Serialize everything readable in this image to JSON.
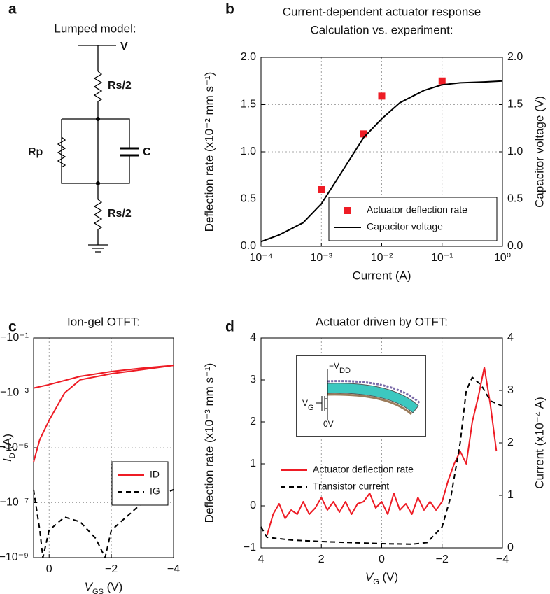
{
  "diagram": {
    "panel": "a",
    "title": "Lumped model:",
    "labels": {
      "v": "V",
      "rs_top": "Rs/2",
      "rp": "Rp",
      "c": "C",
      "rs_bottom": "Rs/2"
    }
  },
  "chart_data": [
    {
      "type": "line",
      "panel": "b",
      "title": "Current-dependent actuator response",
      "subtitle": "Calculation vs. experiment:",
      "x_label": "Current (A)",
      "y_label": "Deflection rate (x10⁻² mm s⁻¹)",
      "y2_label": "Capacitor voltage (V)",
      "xscale": "log",
      "xlim": [
        0.0001,
        1
      ],
      "xticks": [
        {
          "value": 0.0001,
          "label": "10⁻⁴"
        },
        {
          "value": 0.001,
          "label": "10⁻³"
        },
        {
          "value": 0.01,
          "label": "10⁻²"
        },
        {
          "value": 0.1,
          "label": "10⁻¹"
        },
        {
          "value": 1,
          "label": "10⁰"
        }
      ],
      "ylim": [
        0,
        2
      ],
      "yticks": [
        {
          "value": 0,
          "label": "0.0"
        },
        0.5,
        {
          "value": 1,
          "label": "1.0"
        },
        1.5,
        {
          "value": 2,
          "label": "2.0"
        }
      ],
      "y2lim": [
        0,
        2
      ],
      "y2ticks": [
        {
          "value": 0,
          "label": "0.0"
        },
        0.5,
        {
          "value": 1,
          "label": "1.0"
        },
        1.5,
        {
          "value": 2,
          "label": "2.0"
        }
      ],
      "grid": "both",
      "legend": "lower right",
      "series": [
        {
          "name": "Actuator deflection rate",
          "type": "scatter",
          "color": "#ee1c25",
          "x": [
            0.001,
            0.005,
            0.01,
            0.1
          ],
          "values": [
            0.6,
            1.19,
            1.59,
            1.75
          ]
        },
        {
          "name": "Capacitor voltage",
          "type": "line",
          "axis": "y2",
          "color": "#000000",
          "x": [
            0.0001,
            0.0002,
            0.0005,
            0.001,
            0.002,
            0.005,
            0.01,
            0.02,
            0.05,
            0.1,
            0.2,
            0.5,
            1
          ],
          "values": [
            0.05,
            0.12,
            0.25,
            0.45,
            0.75,
            1.15,
            1.35,
            1.52,
            1.65,
            1.71,
            1.73,
            1.74,
            1.75
          ]
        }
      ]
    },
    {
      "type": "line",
      "panel": "c",
      "title": "Ion-gel OTFT:",
      "x_label": [
        "V",
        "GS",
        " (V)"
      ],
      "y_label": [
        "I",
        "D",
        " (A)"
      ],
      "xlim": [
        0.5,
        -4
      ],
      "xticks": [
        0,
        {
          "value": -2,
          "label": "−2"
        },
        {
          "value": -4,
          "label": "−4"
        }
      ],
      "yscale": "log",
      "ylim": [
        -1e-09,
        -0.1
      ],
      "yticks": [
        {
          "value": -0.1,
          "label": "−10⁻¹"
        },
        {
          "value": -0.001,
          "label": "−10⁻³"
        },
        {
          "value": -1e-05,
          "label": "−10⁻⁵"
        },
        {
          "value": -1e-07,
          "label": "−10⁻⁷"
        },
        {
          "value": -1e-09,
          "label": "−10⁻⁹"
        }
      ],
      "grid": "both",
      "legend": "center right",
      "series": [
        {
          "name": "ID",
          "type": "line",
          "color": "#ee1c25",
          "x": [
            0.5,
            0.3,
            0,
            -0.5,
            -1,
            -2,
            -3,
            -4,
            -3,
            -2,
            -1,
            0,
            0.5
          ],
          "values": [
            -3e-06,
            -2e-05,
            -0.0001,
            -0.001,
            -0.003,
            -0.005,
            -0.007,
            -0.01,
            -0.008,
            -0.006,
            -0.004,
            -0.002,
            -0.0015
          ]
        },
        {
          "name": "IG",
          "type": "line",
          "dash": true,
          "color": "#000000",
          "x": [
            0.5,
            0.3,
            0.2,
            0,
            -0.5,
            -1,
            -1.5,
            -1.8,
            -2,
            -3,
            -4
          ],
          "values": [
            -3e-07,
            -1e-08,
            -1e-09,
            -1e-08,
            -3e-08,
            -2e-08,
            -5e-09,
            -1e-09,
            -1e-08,
            -1e-07,
            -3e-07
          ]
        }
      ]
    },
    {
      "type": "line",
      "panel": "d",
      "title": "Actuator driven by OTFT:",
      "x_label": [
        "V",
        "G",
        " (V)"
      ],
      "y_label": "Deflection rate (x10⁻³ mm s⁻¹)",
      "y2_label": "Current (x10⁻⁴ A)",
      "inset_labels": [
        [
          "−V",
          "DD"
        ],
        [
          "V",
          "G"
        ],
        [
          "0V"
        ]
      ],
      "xlim": [
        4,
        -4
      ],
      "xticks": [
        4,
        2,
        0,
        {
          "value": -2,
          "label": "−2"
        },
        {
          "value": -4,
          "label": "−4"
        }
      ],
      "ylim": [
        -1,
        4
      ],
      "yticks": [
        {
          "value": -1,
          "label": "−1"
        },
        0,
        1,
        2,
        3,
        4
      ],
      "y2lim": [
        0,
        4
      ],
      "y2ticks": [
        0,
        1,
        2,
        3,
        4
      ],
      "grid": "x",
      "legend": "center left",
      "series": [
        {
          "name": "Actuator deflection rate",
          "type": "line",
          "color": "#ee1c25",
          "x": [
            3.8,
            3.6,
            3.4,
            3.2,
            3.0,
            2.8,
            2.6,
            2.4,
            2.2,
            2.0,
            1.8,
            1.6,
            1.4,
            1.2,
            1.0,
            0.8,
            0.6,
            0.4,
            0.2,
            0,
            -0.2,
            -0.4,
            -0.6,
            -0.8,
            -1.0,
            -1.2,
            -1.4,
            -1.6,
            -1.8,
            -2.0,
            -2.2,
            -2.4,
            -2.6,
            -2.8,
            -3.0,
            -3.2,
            -3.4,
            -3.6,
            -3.8
          ],
          "values": [
            -0.7,
            -0.2,
            0.05,
            -0.3,
            -0.1,
            -0.2,
            0.1,
            -0.2,
            -0.05,
            0.2,
            -0.1,
            0.1,
            -0.15,
            0.1,
            -0.2,
            0.05,
            0.1,
            0.3,
            -0.05,
            0.1,
            -0.2,
            0.3,
            -0.1,
            0.05,
            -0.2,
            0.2,
            -0.1,
            0.1,
            -0.1,
            0.1,
            0.6,
            1.0,
            1.3,
            1.0,
            2.0,
            2.6,
            3.3,
            2.4,
            1.3
          ]
        },
        {
          "name": "Transistor current",
          "type": "line",
          "axis": "y2",
          "dash": true,
          "color": "#000000",
          "x": [
            4,
            3.8,
            3,
            2,
            1,
            0,
            -1,
            -1.5,
            -2,
            -2.3,
            -2.6,
            -2.8,
            -3.0,
            -3.3,
            -3.6,
            -4
          ],
          "values": [
            0.4,
            0.2,
            0.15,
            0.12,
            0.1,
            0.08,
            0.07,
            0.1,
            0.4,
            1.0,
            2.0,
            3.0,
            3.25,
            3.1,
            2.8,
            2.7
          ]
        }
      ]
    }
  ]
}
